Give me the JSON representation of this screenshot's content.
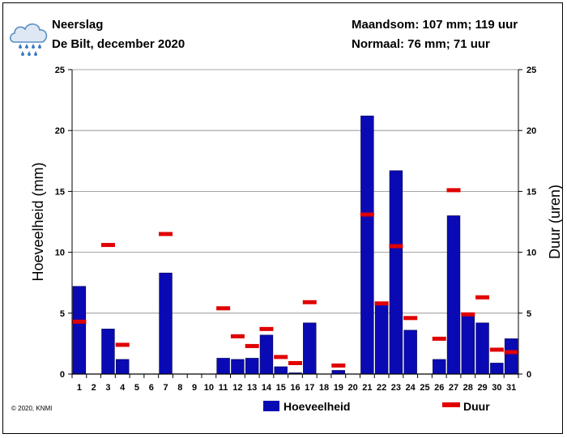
{
  "header": {
    "title": "Neerslag",
    "subtitle": "De Bilt, december 2020",
    "month_total": "Maandsom: 107 mm; 119 uur",
    "normal": "Normaal: 76 mm; 71 uur"
  },
  "icon": "rain-cloud-icon",
  "copyright": "© 2020, KNMI",
  "colors": {
    "bar": "#0a0ab4",
    "duration": "#e00000",
    "grid": "#888888"
  },
  "chart_data": {
    "type": "bar",
    "categories": [
      "1",
      "2",
      "3",
      "4",
      "5",
      "6",
      "7",
      "8",
      "9",
      "10",
      "11",
      "12",
      "13",
      "14",
      "15",
      "16",
      "17",
      "18",
      "19",
      "20",
      "21",
      "22",
      "23",
      "24",
      "25",
      "26",
      "27",
      "28",
      "29",
      "30",
      "31"
    ],
    "series": [
      {
        "name": "Hoeveelheid",
        "type": "bar",
        "axis": "left",
        "values": [
          7.2,
          0,
          3.7,
          1.2,
          0,
          0,
          8.3,
          0,
          0,
          0,
          1.3,
          1.2,
          1.3,
          3.2,
          0.6,
          0.1,
          4.2,
          0,
          0.3,
          0,
          21.2,
          5.7,
          16.7,
          3.6,
          0,
          1.2,
          13.0,
          4.9,
          4.2,
          0.9,
          2.9
        ]
      },
      {
        "name": "Duur",
        "type": "marker",
        "axis": "right",
        "values": [
          4.3,
          null,
          10.6,
          2.4,
          null,
          null,
          11.5,
          null,
          null,
          null,
          5.4,
          3.1,
          2.3,
          3.7,
          1.4,
          0.9,
          5.9,
          null,
          0.7,
          null,
          13.1,
          5.8,
          10.5,
          4.6,
          null,
          2.9,
          15.1,
          4.9,
          6.3,
          2.0,
          1.8
        ]
      }
    ],
    "ylabel": "Hoeveelheid (mm)",
    "y2label": "Duur (uren)",
    "ylim": [
      0,
      25
    ],
    "y2lim": [
      0,
      25
    ],
    "yticks": [
      0,
      5,
      10,
      15,
      20,
      25
    ],
    "grid": true,
    "legend_position": "bottom"
  }
}
